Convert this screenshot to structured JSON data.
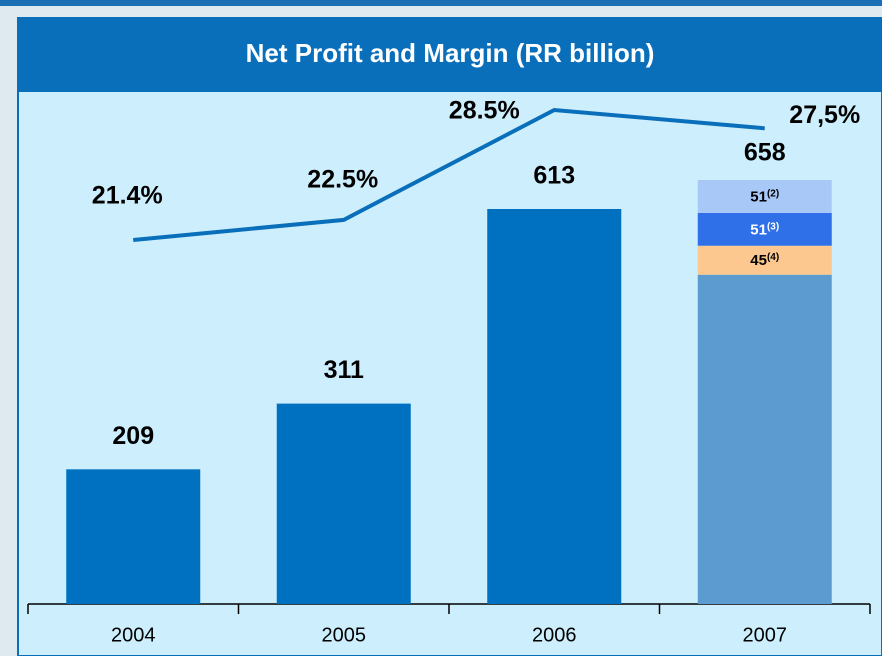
{
  "chart_data": {
    "type": "bar",
    "title": "Net Profit and Margin (RR billion)",
    "categories": [
      "2004",
      "2005",
      "2006",
      "2007"
    ],
    "series": [
      {
        "values": [
          209,
          311,
          613,
          511
        ],
        "colors": [
          "#0070c0",
          "#0070c0",
          "#0070c0",
          "#5b9bd0"
        ]
      },
      {
        "values": [
          null,
          null,
          null,
          45
        ],
        "color": "#fcc88f",
        "note": "(4)"
      },
      {
        "values": [
          null,
          null,
          null,
          51
        ],
        "color": "#2f6fe8",
        "note": "(3)",
        "text_color": "#ffffff"
      },
      {
        "values": [
          null,
          null,
          null,
          51
        ],
        "color": "#a8c8f8",
        "note": "(2)"
      }
    ],
    "totals": [
      null,
      null,
      null,
      658
    ],
    "line": {
      "values": [
        21.4,
        22.5,
        28.5,
        27.5
      ],
      "value_labels": [
        "21.4%",
        "22.5%",
        "28.5%",
        "27,5%"
      ],
      "color": "#0a6fba"
    }
  }
}
